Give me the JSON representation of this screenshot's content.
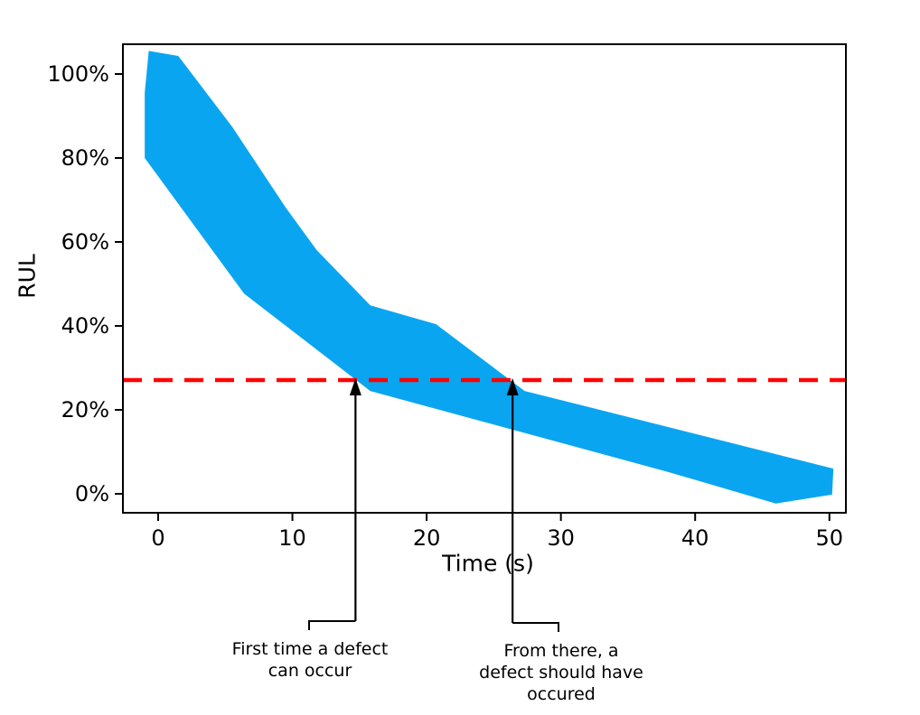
{
  "chart_data": {
    "type": "area",
    "title": "",
    "xlabel": "Time (s)",
    "ylabel": "RUL",
    "xlim": [
      -2.6,
      51.2
    ],
    "ylim": [
      -4.5,
      107.1
    ],
    "grid": false,
    "legend": "none",
    "xticks": {
      "values": [
        0,
        10,
        20,
        30,
        40,
        50
      ],
      "labels": [
        "0",
        "10",
        "20",
        "30",
        "40",
        "50"
      ]
    },
    "yticks": {
      "values": [
        0,
        20,
        40,
        60,
        80,
        100
      ],
      "labels": [
        "0%",
        "20%",
        "40%",
        "60%",
        "80%",
        "100%"
      ]
    },
    "band": {
      "name": "rul-uncertainty-band",
      "color": "#0aa5f0",
      "upper": [
        [
          -1.0,
          95.5
        ],
        [
          -0.7,
          105.5
        ],
        [
          1.5,
          104.3
        ],
        [
          5.5,
          87.5
        ],
        [
          9.5,
          68.2
        ],
        [
          11.8,
          58.1
        ],
        [
          15.8,
          44.9
        ],
        [
          20.7,
          40.4
        ],
        [
          27.3,
          24.5
        ],
        [
          50.3,
          6.0
        ]
      ],
      "lower": [
        [
          -1.0,
          80.0
        ],
        [
          6.4,
          47.7
        ],
        [
          15.8,
          24.5
        ],
        [
          38.0,
          5.2
        ],
        [
          46.0,
          -2.3
        ],
        [
          50.2,
          -0.2
        ]
      ]
    },
    "threshold": {
      "value": 27.1,
      "color": "#ff0000",
      "style": "dashed"
    },
    "annotations": [
      {
        "text": "First time a defect\ncan occur",
        "arrow_x": 14.7,
        "arrow_y": 27.5
      },
      {
        "text": "From there, a\ndefect should have\noccured",
        "arrow_x": 26.4,
        "arrow_y": 27.3
      }
    ]
  }
}
